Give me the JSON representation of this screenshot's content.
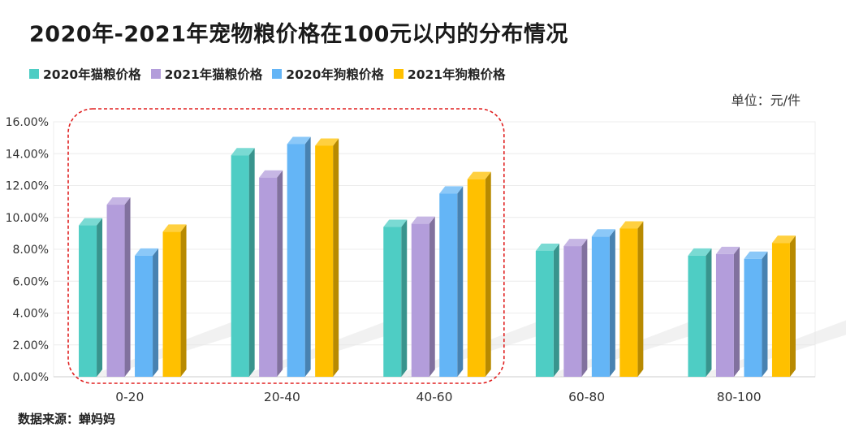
{
  "chart_data": {
    "type": "bar",
    "title": "2020年-2021年宠物粮价格在100元以内的分布情况",
    "unit_label": "单位：元/件",
    "source": "数据来源：蝉妈妈",
    "categories": [
      "0-20",
      "20-40",
      "40-60",
      "60-80",
      "80-100"
    ],
    "ylim": [
      0,
      16
    ],
    "yticks": [
      "0.00%",
      "2.00%",
      "4.00%",
      "6.00%",
      "8.00%",
      "10.00%",
      "12.00%",
      "14.00%",
      "16.00%"
    ],
    "grid": true,
    "legend_position": "top-left",
    "series": [
      {
        "name": "2020年猫粮价格",
        "color": "#4ECDC4",
        "values": [
          9.5,
          13.9,
          9.4,
          7.9,
          7.6
        ]
      },
      {
        "name": "2021年猫粮价格",
        "color": "#B39DDB",
        "values": [
          10.8,
          12.5,
          9.6,
          8.2,
          7.7
        ]
      },
      {
        "name": "2020年狗粮价格",
        "color": "#64B5F6",
        "values": [
          7.6,
          14.6,
          11.5,
          8.8,
          7.4
        ]
      },
      {
        "name": "2021年狗粮价格",
        "color": "#FFC000",
        "values": [
          9.1,
          14.5,
          12.4,
          9.3,
          8.4
        ]
      }
    ],
    "highlight": {
      "categories": [
        "0-20",
        "20-40",
        "40-60"
      ],
      "style": "dashed",
      "color": "#E02020"
    }
  }
}
